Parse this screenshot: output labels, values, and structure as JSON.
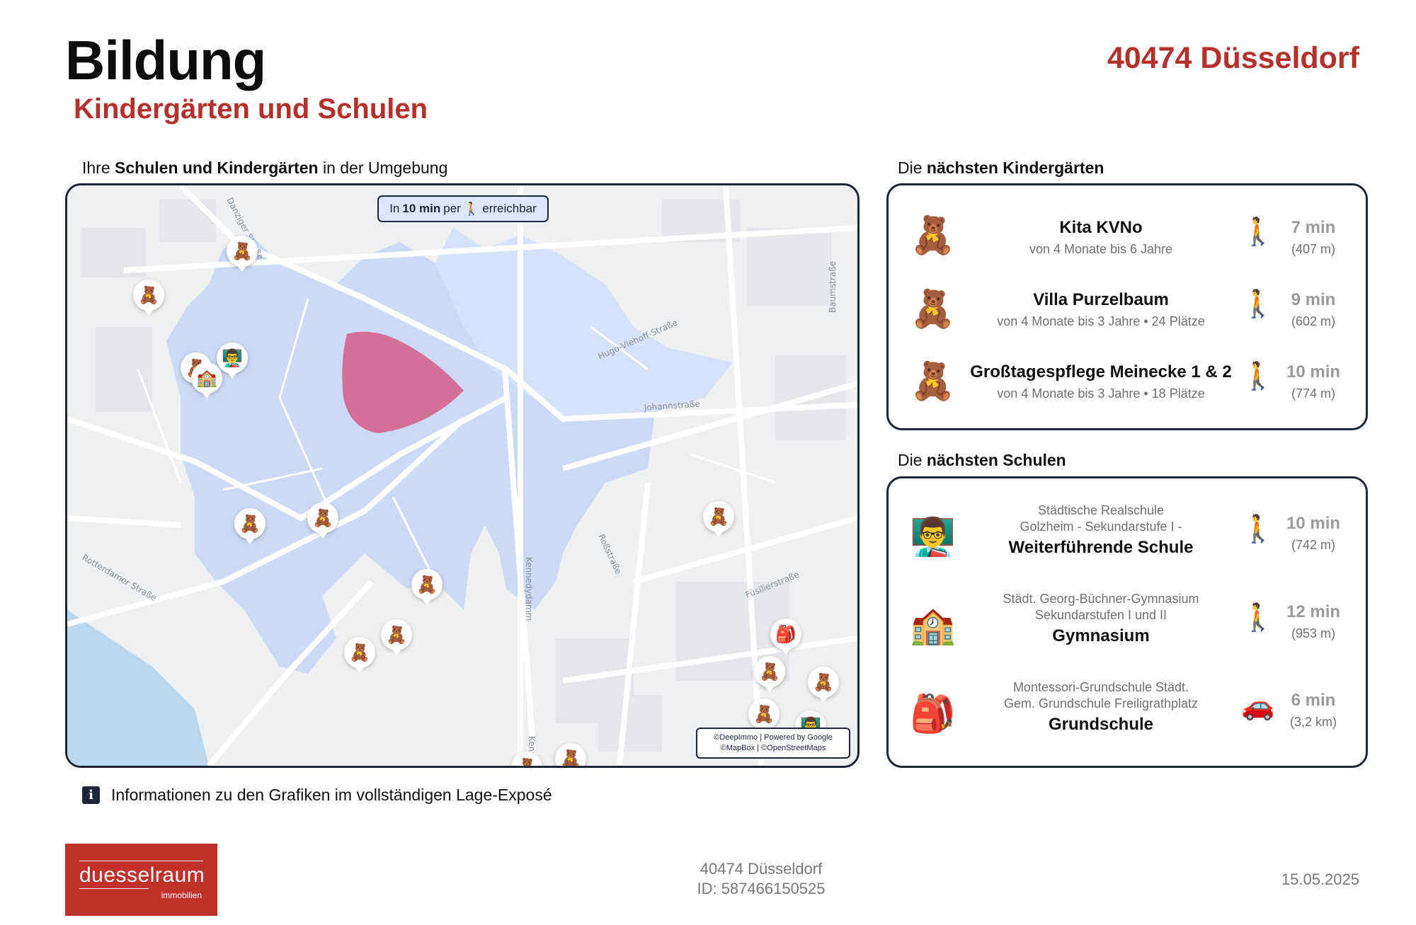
{
  "header": {
    "title": "Bildung",
    "subtitle": "Kindergärten und Schulen",
    "location": "40474 Düsseldorf"
  },
  "map_section": {
    "label_prefix": "Ihre ",
    "label_bold": "Schulen und Kindergärten",
    "label_suffix": " in der Umgebung",
    "reach_prefix": "In ",
    "reach_bold": "10 min",
    "reach_mid": " per ",
    "reach_suffix": " erreichbar",
    "walk_icon": "walking-person-icon",
    "attribution_line1": "©DeepImmo | Powered by Google",
    "attribution_line2": "©MapBox | ©OpenStreetMaps",
    "street_labels": [
      "Danziger Straße",
      "Hugo-Viehoff-Straße",
      "Baumstraße",
      "Johannstraße",
      "Rotterdamer Straße",
      "Kennedydamm",
      "Roßstraße",
      "Füsilierstraße",
      "Kenne"
    ],
    "colors": {
      "reach_area": "#c9d8f6",
      "core_area": "#d45c88",
      "water": "#bcd6ec",
      "road": "#ffffff",
      "block": "#e7e9ec"
    },
    "pins": [
      "teddy-bear-icon",
      "school-building-icon",
      "teacher-icon",
      "backpack-icon"
    ]
  },
  "kita_section": {
    "label_prefix": "Die ",
    "label_bold": "nächsten Kindergärten",
    "items": [
      {
        "icon": "teddy-bear-icon",
        "name": "Kita KVNo",
        "detail": "von 4 Monate bis 6 Jahre",
        "mode": "walking-person-icon",
        "time": "7 min",
        "distance": "(407 m)"
      },
      {
        "icon": "teddy-bear-icon",
        "name": "Villa Purzelbaum",
        "detail": "von 4 Monate bis 3 Jahre • 24 Plätze",
        "mode": "walking-person-icon",
        "time": "9 min",
        "distance": "(602 m)"
      },
      {
        "icon": "teddy-bear-icon",
        "name": "Großtagespflege Meinecke 1 & 2",
        "detail": "von 4 Monate bis 3 Jahre • 18 Plätze",
        "mode": "walking-person-icon",
        "time": "10 min",
        "distance": "(774 m)"
      }
    ]
  },
  "schule_section": {
    "label_prefix": "Die ",
    "label_bold": "nächsten Schulen",
    "items": [
      {
        "icon": "teacher-icon",
        "pre1": "Städtische Realschule",
        "pre2": "Golzheim - Sekundarstufe I -",
        "type": "Weiterführende Schule",
        "mode": "walking-person-icon",
        "time": "10 min",
        "distance": "(742 m)"
      },
      {
        "icon": "school-building-icon",
        "pre1": "Städt. Georg-Büchner-Gymnasium",
        "pre2": "Sekundarstufen I und II",
        "type": "Gymnasium",
        "mode": "walking-person-icon",
        "time": "12 min",
        "distance": "(953 m)"
      },
      {
        "icon": "backpack-icon",
        "pre1": "Montessori-Grundschule Städt.",
        "pre2": "Gem. Grundschule Freiligrathplatz",
        "type": "Grundschule",
        "mode": "car-icon",
        "time": "6 min",
        "distance": "(3,2 km)"
      }
    ]
  },
  "info": {
    "icon": "info-icon",
    "text": "Informationen zu den Grafiken im vollständigen Lage-Exposé"
  },
  "footer": {
    "logo_main": "duesselraum",
    "logo_sub": "immobilien",
    "address": "40474 Düsseldorf",
    "id": "ID: 587466150525",
    "date": "15.05.2025",
    "brand_color": "#c0312b"
  }
}
